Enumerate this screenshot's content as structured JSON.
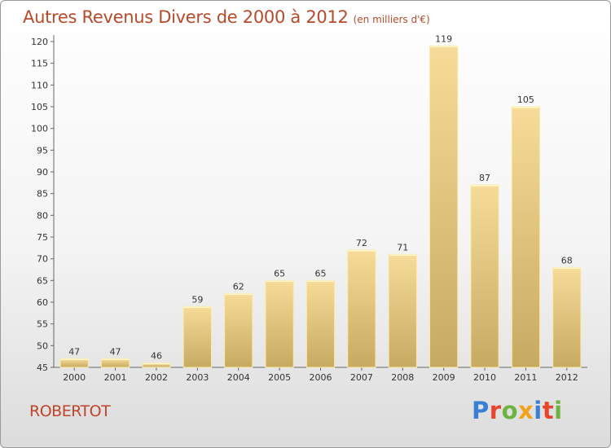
{
  "title": "Autres Revenus Divers de 2000 à 2012",
  "subtitle": "(en milliers d'€)",
  "commune": "ROBERTOT",
  "brand": {
    "text": "Proxiti",
    "colors": [
      "#3a7fd5",
      "#e8452c",
      "#6db33f",
      "#f2a31b",
      "#3a7fd5",
      "#e8452c",
      "#6db33f"
    ]
  },
  "chart_data": {
    "type": "bar",
    "title": "Autres Revenus Divers de 2000 à 2012",
    "subtitle": "(en milliers d'€)",
    "xlabel": "",
    "ylabel": "",
    "categories": [
      "2000",
      "2001",
      "2002",
      "2003",
      "2004",
      "2005",
      "2006",
      "2007",
      "2008",
      "2009",
      "2010",
      "2011",
      "2012"
    ],
    "values": [
      47,
      47,
      46,
      59,
      62,
      65,
      65,
      72,
      71,
      119,
      87,
      105,
      68
    ],
    "ylim": [
      45,
      120
    ],
    "yticks": [
      45,
      50,
      55,
      60,
      65,
      70,
      75,
      80,
      85,
      90,
      95,
      100,
      105,
      110,
      115,
      120
    ],
    "grid": false,
    "bar_color": "#e8cc82"
  }
}
